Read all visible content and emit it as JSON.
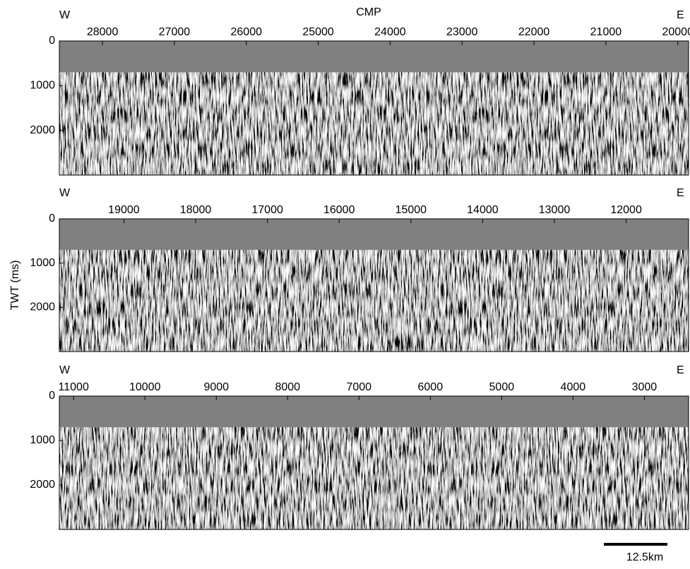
{
  "chart_data": [
    {
      "type": "seismic",
      "annotations": [
        "W",
        "E"
      ],
      "x_label": "CMP",
      "xlim": [
        28600,
        19850
      ],
      "xticks": [
        28000,
        27000,
        26000,
        25000,
        24000,
        23000,
        22000,
        21000,
        20000
      ],
      "ylim": [
        0,
        3000
      ],
      "yticks": [
        0,
        1000,
        2000
      ]
    },
    {
      "type": "seismic",
      "annotations": [
        "W",
        "E"
      ],
      "y_label": "TWT (ms)",
      "xlim": [
        19900,
        11130
      ],
      "xticks": [
        19000,
        18000,
        17000,
        16000,
        15000,
        14000,
        13000,
        12000
      ],
      "ylim": [
        0,
        3000
      ],
      "yticks": [
        0,
        1000,
        2000
      ]
    },
    {
      "type": "seismic",
      "annotations": [
        "W",
        "E"
      ],
      "scale_bar": "12.5km",
      "xlim": [
        11200,
        2380
      ],
      "xticks": [
        11000,
        10000,
        9000,
        8000,
        7000,
        6000,
        5000,
        4000,
        3000
      ],
      "ylim": [
        0,
        3000
      ],
      "yticks": [
        0,
        1000,
        2000
      ]
    }
  ]
}
